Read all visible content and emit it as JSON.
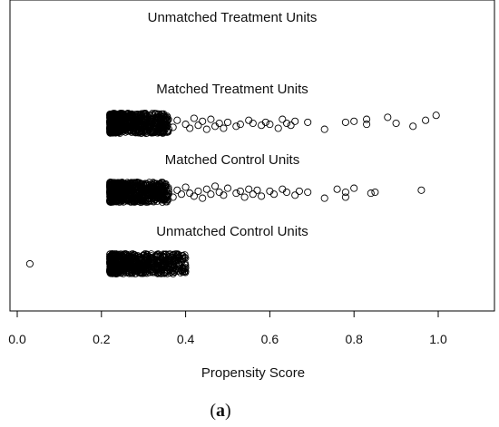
{
  "chart_data": {
    "type": "scatter",
    "panel_label": "a",
    "xlabel": "Propensity Score",
    "xticks": [
      "0.0",
      "0.2",
      "0.4",
      "0.6",
      "0.8",
      "1.0"
    ],
    "xlim": [
      -0.01,
      1.13
    ],
    "grid": false,
    "groups": [
      {
        "name": "Unmatched Treatment Units",
        "dense_range": null,
        "points": []
      },
      {
        "name": "Matched Treatment Units",
        "dense_range": [
          0.22,
          0.36
        ],
        "points": [
          [
            0.37,
            0.4
          ],
          [
            0.38,
            -0.3
          ],
          [
            0.4,
            0.1
          ],
          [
            0.41,
            0.5
          ],
          [
            0.42,
            -0.5
          ],
          [
            0.43,
            0.2
          ],
          [
            0.44,
            -0.2
          ],
          [
            0.45,
            0.6
          ],
          [
            0.46,
            -0.4
          ],
          [
            0.47,
            0.3
          ],
          [
            0.48,
            0.0
          ],
          [
            0.49,
            0.5
          ],
          [
            0.5,
            -0.1
          ],
          [
            0.52,
            0.3
          ],
          [
            0.53,
            0.1
          ],
          [
            0.55,
            -0.3
          ],
          [
            0.56,
            0.0
          ],
          [
            0.58,
            0.2
          ],
          [
            0.59,
            -0.1
          ],
          [
            0.6,
            0.1
          ],
          [
            0.62,
            0.5
          ],
          [
            0.63,
            -0.4
          ],
          [
            0.64,
            0.0
          ],
          [
            0.65,
            0.2
          ],
          [
            0.66,
            -0.2
          ],
          [
            0.69,
            -0.1
          ],
          [
            0.73,
            0.6
          ],
          [
            0.78,
            -0.1
          ],
          [
            0.8,
            -0.2
          ],
          [
            0.83,
            0.1
          ],
          [
            0.83,
            -0.4
          ],
          [
            0.88,
            -0.6
          ],
          [
            0.9,
            0.0
          ],
          [
            0.94,
            0.3
          ],
          [
            0.97,
            -0.3
          ],
          [
            0.995,
            -0.8
          ]
        ]
      },
      {
        "name": "Matched Control Units",
        "dense_range": [
          0.22,
          0.36
        ],
        "points": [
          [
            0.37,
            0.5
          ],
          [
            0.38,
            -0.2
          ],
          [
            0.39,
            0.2
          ],
          [
            0.4,
            -0.5
          ],
          [
            0.41,
            0.1
          ],
          [
            0.42,
            0.4
          ],
          [
            0.43,
            -0.1
          ],
          [
            0.44,
            0.6
          ],
          [
            0.45,
            -0.3
          ],
          [
            0.46,
            0.2
          ],
          [
            0.47,
            -0.6
          ],
          [
            0.48,
            0.0
          ],
          [
            0.49,
            0.3
          ],
          [
            0.5,
            -0.4
          ],
          [
            0.52,
            0.1
          ],
          [
            0.53,
            -0.1
          ],
          [
            0.54,
            0.5
          ],
          [
            0.55,
            -0.3
          ],
          [
            0.56,
            0.2
          ],
          [
            0.57,
            -0.2
          ],
          [
            0.58,
            0.4
          ],
          [
            0.6,
            -0.1
          ],
          [
            0.61,
            0.2
          ],
          [
            0.63,
            -0.3
          ],
          [
            0.64,
            0.0
          ],
          [
            0.66,
            0.3
          ],
          [
            0.67,
            -0.1
          ],
          [
            0.69,
            0.0
          ],
          [
            0.73,
            0.6
          ],
          [
            0.76,
            -0.3
          ],
          [
            0.78,
            0.0
          ],
          [
            0.78,
            0.5
          ],
          [
            0.8,
            -0.4
          ],
          [
            0.84,
            0.1
          ],
          [
            0.85,
            0.0
          ],
          [
            0.96,
            -0.2
          ]
        ]
      },
      {
        "name": "Unmatched Control Units",
        "dense_range": [
          0.22,
          0.4
        ],
        "points": [
          [
            0.03,
            0.0
          ]
        ]
      }
    ]
  }
}
